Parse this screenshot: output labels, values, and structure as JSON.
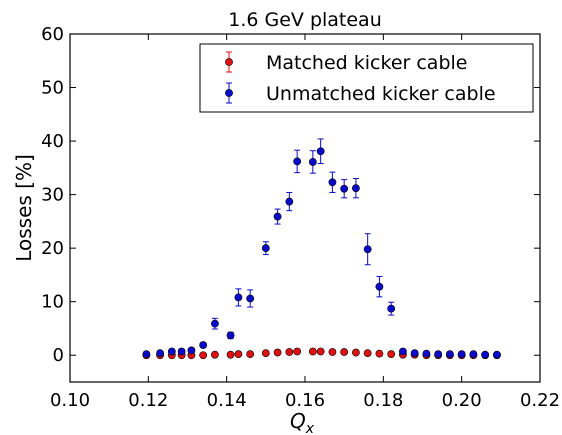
{
  "chart_data": {
    "type": "scatter",
    "title": "1.6 GeV plateau",
    "xlabel": "Q",
    "xlabel_sub": "x",
    "ylabel": "Losses [%]",
    "xlim": [
      0.1,
      0.22
    ],
    "ylim": [
      -5,
      60
    ],
    "xticks": [
      0.1,
      0.12,
      0.14,
      0.16,
      0.18,
      0.2,
      0.22
    ],
    "xtick_labels": [
      "0.10",
      "0.12",
      "0.14",
      "0.16",
      "0.18",
      "0.20",
      "0.22"
    ],
    "yticks": [
      0,
      10,
      20,
      30,
      40,
      50,
      60
    ],
    "ytick_labels": [
      "0",
      "10",
      "20",
      "30",
      "40",
      "50",
      "60"
    ],
    "legend_position": "top-right",
    "grid": false,
    "series": [
      {
        "name": "Matched kicker cable",
        "color": "#dd1111",
        "points": [
          {
            "x": 0.1195,
            "y": 0.0,
            "err": 0.2
          },
          {
            "x": 0.123,
            "y": 0.0,
            "err": 0.2
          },
          {
            "x": 0.126,
            "y": 0.0,
            "err": 0.2
          },
          {
            "x": 0.1285,
            "y": 0.0,
            "err": 0.2
          },
          {
            "x": 0.131,
            "y": 0.0,
            "err": 0.2
          },
          {
            "x": 0.134,
            "y": 0.0,
            "err": 0.2
          },
          {
            "x": 0.137,
            "y": 0.1,
            "err": 0.2
          },
          {
            "x": 0.141,
            "y": 0.1,
            "err": 0.2
          },
          {
            "x": 0.143,
            "y": 0.2,
            "err": 0.2
          },
          {
            "x": 0.146,
            "y": 0.2,
            "err": 0.2
          },
          {
            "x": 0.15,
            "y": 0.4,
            "err": 0.2
          },
          {
            "x": 0.153,
            "y": 0.5,
            "err": 0.2
          },
          {
            "x": 0.156,
            "y": 0.6,
            "err": 0.2
          },
          {
            "x": 0.158,
            "y": 0.7,
            "err": 0.2
          },
          {
            "x": 0.162,
            "y": 0.7,
            "err": 0.2
          },
          {
            "x": 0.164,
            "y": 0.7,
            "err": 0.2
          },
          {
            "x": 0.167,
            "y": 0.6,
            "err": 0.2
          },
          {
            "x": 0.17,
            "y": 0.6,
            "err": 0.2
          },
          {
            "x": 0.173,
            "y": 0.5,
            "err": 0.2
          },
          {
            "x": 0.176,
            "y": 0.4,
            "err": 0.2
          },
          {
            "x": 0.179,
            "y": 0.3,
            "err": 0.2
          },
          {
            "x": 0.182,
            "y": 0.2,
            "err": 0.2
          },
          {
            "x": 0.185,
            "y": 0.1,
            "err": 0.2
          },
          {
            "x": 0.188,
            "y": 0.1,
            "err": 0.2
          },
          {
            "x": 0.191,
            "y": 0.0,
            "err": 0.2
          },
          {
            "x": 0.194,
            "y": 0.0,
            "err": 0.2
          },
          {
            "x": 0.197,
            "y": 0.0,
            "err": 0.2
          },
          {
            "x": 0.2,
            "y": 0.0,
            "err": 0.2
          },
          {
            "x": 0.203,
            "y": 0.0,
            "err": 0.2
          },
          {
            "x": 0.206,
            "y": 0.0,
            "err": 0.2
          },
          {
            "x": 0.209,
            "y": 0.0,
            "err": 0.2
          }
        ]
      },
      {
        "name": "Unmatched kicker cable",
        "color": "#0a0acc",
        "points": [
          {
            "x": 0.1195,
            "y": 0.2,
            "err": 0.4
          },
          {
            "x": 0.123,
            "y": 0.4,
            "err": 0.4
          },
          {
            "x": 0.126,
            "y": 0.7,
            "err": 0.4
          },
          {
            "x": 0.1285,
            "y": 0.7,
            "err": 0.4
          },
          {
            "x": 0.131,
            "y": 0.9,
            "err": 0.4
          },
          {
            "x": 0.134,
            "y": 1.9,
            "err": 0.4
          },
          {
            "x": 0.137,
            "y": 5.9,
            "err": 1.0
          },
          {
            "x": 0.141,
            "y": 3.7,
            "err": 0.6
          },
          {
            "x": 0.143,
            "y": 10.8,
            "err": 1.6
          },
          {
            "x": 0.146,
            "y": 10.6,
            "err": 1.6
          },
          {
            "x": 0.15,
            "y": 20.0,
            "err": 1.2
          },
          {
            "x": 0.153,
            "y": 25.9,
            "err": 1.4
          },
          {
            "x": 0.156,
            "y": 28.7,
            "err": 1.7
          },
          {
            "x": 0.158,
            "y": 36.2,
            "err": 2.1
          },
          {
            "x": 0.162,
            "y": 36.1,
            "err": 2.1
          },
          {
            "x": 0.164,
            "y": 38.1,
            "err": 2.3
          },
          {
            "x": 0.167,
            "y": 32.3,
            "err": 1.9
          },
          {
            "x": 0.17,
            "y": 31.1,
            "err": 1.7
          },
          {
            "x": 0.173,
            "y": 31.2,
            "err": 1.8
          },
          {
            "x": 0.176,
            "y": 19.8,
            "err": 2.9
          },
          {
            "x": 0.179,
            "y": 12.8,
            "err": 1.9
          },
          {
            "x": 0.182,
            "y": 8.7,
            "err": 1.2
          },
          {
            "x": 0.185,
            "y": 0.7,
            "err": 0.4
          },
          {
            "x": 0.188,
            "y": 0.4,
            "err": 0.4
          },
          {
            "x": 0.191,
            "y": 0.3,
            "err": 0.4
          },
          {
            "x": 0.194,
            "y": 0.2,
            "err": 0.4
          },
          {
            "x": 0.197,
            "y": 0.2,
            "err": 0.4
          },
          {
            "x": 0.2,
            "y": 0.2,
            "err": 0.4
          },
          {
            "x": 0.203,
            "y": 0.2,
            "err": 0.4
          },
          {
            "x": 0.206,
            "y": 0.1,
            "err": 0.4
          },
          {
            "x": 0.209,
            "y": 0.1,
            "err": 0.4
          }
        ]
      }
    ]
  }
}
